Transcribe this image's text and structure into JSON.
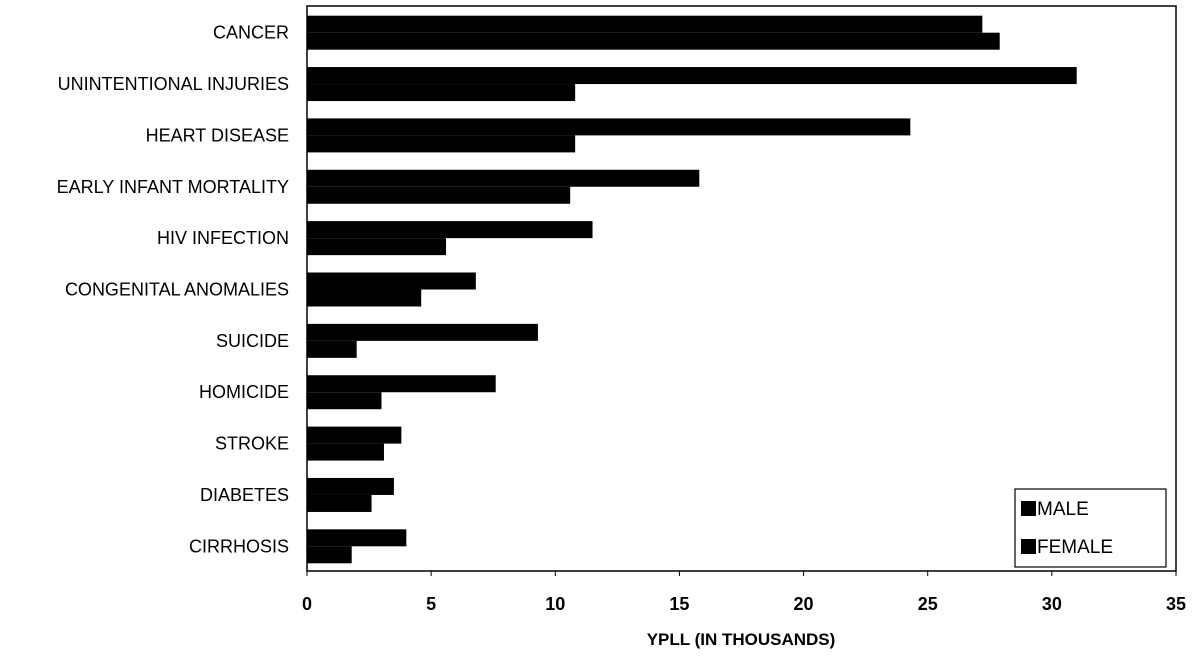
{
  "chart_data": {
    "type": "bar",
    "orientation": "horizontal",
    "categories": [
      "CANCER",
      "UNINTENTIONAL INJURIES",
      "HEART DISEASE",
      "EARLY INFANT MORTALITY",
      "HIV INFECTION",
      "CONGENITAL ANOMALIES",
      "SUICIDE",
      "HOMICIDE",
      "STROKE",
      "DIABETES",
      "CIRRHOSIS"
    ],
    "series": [
      {
        "name": "MALE",
        "values": [
          27.2,
          31.0,
          24.3,
          15.8,
          11.5,
          6.8,
          9.3,
          7.6,
          3.8,
          3.5,
          4.0
        ]
      },
      {
        "name": "FEMALE",
        "values": [
          27.9,
          10.8,
          10.8,
          10.6,
          5.6,
          4.6,
          2.0,
          3.0,
          3.1,
          2.6,
          1.8
        ]
      }
    ],
    "xlabel": "YPLL (IN THOUSANDS)",
    "ylabel": "",
    "title": "",
    "xlim": [
      0,
      35
    ],
    "xticks": [
      0,
      5,
      10,
      15,
      20,
      25,
      30,
      35
    ],
    "grid": false,
    "legend_position": "bottom-right",
    "bar_color": "#000000"
  }
}
